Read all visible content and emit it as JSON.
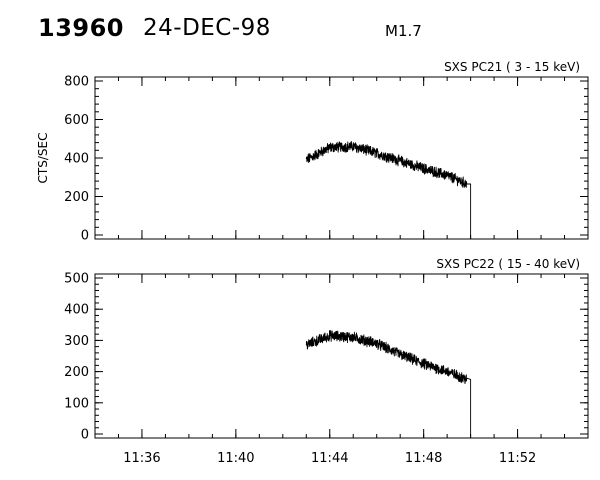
{
  "header": {
    "event_id": "13960",
    "date": "24-DEC-98",
    "flare_class": "M1.7"
  },
  "chart_data": [
    {
      "type": "line",
      "title": "SXS PC21  (  3 - 15 keV)",
      "xlabel": "",
      "ylabel": "CTS/SEC",
      "xlim": [
        "11:34",
        "11:55"
      ],
      "ylim": [
        0,
        800
      ],
      "y_ticks": [
        0,
        200,
        400,
        600,
        800
      ],
      "x_ticks": [
        "11:36",
        "11:40",
        "11:44",
        "11:48",
        "11:52"
      ],
      "x_tick_labels_shown": false,
      "grid": false,
      "series": [
        {
          "x": [
            "11:43:00",
            "11:44:00",
            "11:45:00",
            "11:46:00",
            "11:47:00",
            "11:48:00",
            "11:49:00",
            "11:49:50",
            "11:50:00"
          ],
          "y": [
            390,
            455,
            460,
            425,
            385,
            345,
            310,
            265,
            0
          ]
        }
      ]
    },
    {
      "type": "line",
      "title": "SXS PC22  ( 15 - 40 keV)",
      "xlabel": "",
      "ylabel": "",
      "xlim": [
        "11:34",
        "11:55"
      ],
      "ylim": [
        0,
        500
      ],
      "y_ticks": [
        0,
        100,
        200,
        300,
        400,
        500
      ],
      "x_ticks": [
        "11:36",
        "11:40",
        "11:44",
        "11:48",
        "11:52"
      ],
      "x_tick_labels_shown": true,
      "grid": false,
      "series": [
        {
          "x": [
            "11:43:00",
            "11:44:00",
            "11:45:00",
            "11:46:00",
            "11:47:00",
            "11:48:00",
            "11:49:00",
            "11:49:50",
            "11:50:00"
          ],
          "y": [
            285,
            315,
            310,
            290,
            255,
            225,
            200,
            175,
            0
          ]
        }
      ]
    }
  ]
}
